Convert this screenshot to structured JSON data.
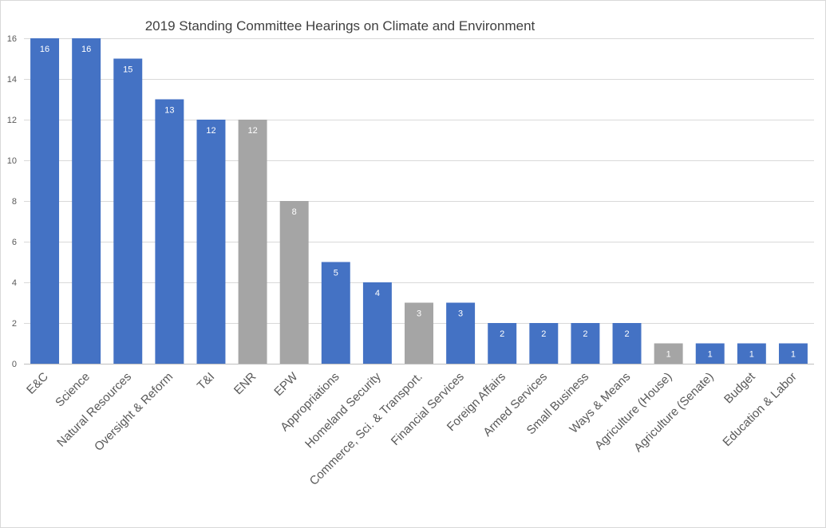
{
  "chart_data": {
    "type": "bar",
    "title": "2019 Standing Committee Hearings on Climate and Environment",
    "xlabel": "",
    "ylabel": "",
    "ylim": [
      0,
      16
    ],
    "yticks": [
      0,
      2,
      4,
      6,
      8,
      10,
      12,
      14,
      16
    ],
    "grid": true,
    "legend": "none",
    "colors": {
      "house": "#4472C4",
      "senate": "#A5A5A5"
    },
    "categories": [
      "E&C",
      "Science",
      "Natural Resources",
      "Oversight & Reform",
      "T&I",
      "ENR",
      "EPW",
      "Appropriations",
      "Homeland Security",
      "Commerce, Sci. & Transport.",
      "Financial Services",
      "Foreign Affairs",
      "Armed Services",
      "Small Business",
      "Ways & Means",
      "Agriculture (House)",
      "Agriculture (Senate)",
      "Budget",
      "Education & Labor"
    ],
    "values": [
      16,
      16,
      15,
      13,
      12,
      12,
      8,
      5,
      4,
      3,
      3,
      2,
      2,
      2,
      2,
      1,
      1,
      1,
      1
    ],
    "bar_colors": [
      "#4472C4",
      "#4472C4",
      "#4472C4",
      "#4472C4",
      "#4472C4",
      "#A5A5A5",
      "#A5A5A5",
      "#4472C4",
      "#4472C4",
      "#A5A5A5",
      "#4472C4",
      "#4472C4",
      "#4472C4",
      "#4472C4",
      "#4472C4",
      "#A5A5A5",
      "#4472C4",
      "#4472C4",
      "#4472C4"
    ]
  }
}
